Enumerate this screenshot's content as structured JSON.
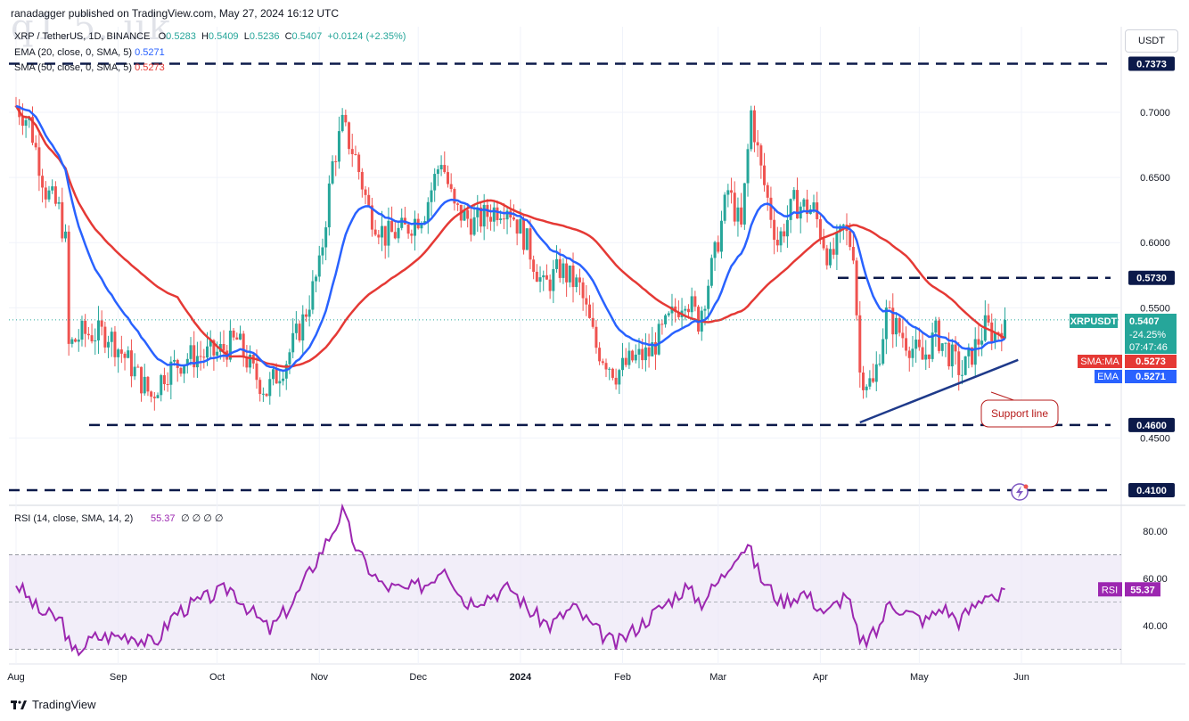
{
  "header": {
    "publisher": "ranadagger published on TradingView.com, May 27, 2024 16:12 UTC",
    "symbol": "XRP / TetherUS, 1D, BINANCE",
    "open_label": "O",
    "open": "0.5283",
    "high_label": "H",
    "high": "0.5409",
    "low_label": "L",
    "low": "0.5236",
    "close_label": "C",
    "close": "0.5407",
    "change": "+0.0124 (+2.35%)",
    "ema_label": "EMA (20, close, 0, SMA, 5)",
    "ema_value": "0.5271",
    "sma_label": "SMA (50, close, 0, SMA, 5)",
    "sma_value": "0.5273"
  },
  "watermark": "q1.5..uk",
  "currency_button": "USDT",
  "footer": {
    "brand": "TradingView"
  },
  "colors": {
    "up": "#26a69a",
    "down": "#ef5350",
    "ema": "#2962ff",
    "sma": "#e53935",
    "rsi": "#9c27b0",
    "rsi_band": "#ede7f6",
    "support": "#1e3a8a",
    "level": "#0c1a4a"
  },
  "chart_data": {
    "type": "candlestick",
    "symbol": "XRPUSDT",
    "price_axis": {
      "ylim": [
        0.405,
        0.755
      ],
      "ticks": [
        "0.7000",
        "0.6500",
        "0.6000",
        "0.5500",
        "0.4500"
      ]
    },
    "x_axis": {
      "labels": [
        "Aug",
        "Sep",
        "Oct",
        "Nov",
        "Dec",
        "2024",
        "Feb",
        "Mar",
        "Apr",
        "May",
        "Jun"
      ]
    },
    "horizontal_levels": [
      {
        "value": 0.7373,
        "label": "0.7373"
      },
      {
        "value": 0.573,
        "label": "0.5730"
      },
      {
        "value": 0.46,
        "label": "0.4600"
      },
      {
        "value": 0.41,
        "label": "0.4100"
      }
    ],
    "support_line": {
      "from": [
        "2024-04-13",
        0.462
      ],
      "to": [
        "2024-05-31",
        0.51
      ],
      "label": "Support line"
    },
    "last_price_tag": {
      "name": "XRPUSDT",
      "price": "0.5407",
      "change": "-24.25%",
      "countdown": "07:47:46"
    },
    "sma_tag": {
      "name": "SMA:MA",
      "value": "0.5273"
    },
    "ema_tag": {
      "name": "EMA",
      "value": "0.5271"
    },
    "price_path": [
      [
        "2023-08-01",
        0.705
      ],
      [
        "2023-08-05",
        0.693
      ],
      [
        "2023-08-10",
        0.64
      ],
      [
        "2023-08-14",
        0.625
      ],
      [
        "2023-08-16",
        0.6
      ],
      [
        "2023-08-17",
        0.52
      ],
      [
        "2023-08-21",
        0.53
      ],
      [
        "2023-08-29",
        0.53
      ],
      [
        "2023-09-05",
        0.505
      ],
      [
        "2023-09-11",
        0.482
      ],
      [
        "2023-09-15",
        0.5
      ],
      [
        "2023-09-22",
        0.512
      ],
      [
        "2023-10-01",
        0.515
      ],
      [
        "2023-10-07",
        0.525
      ],
      [
        "2023-10-12",
        0.5
      ],
      [
        "2023-10-16",
        0.486
      ],
      [
        "2023-10-22",
        0.51
      ],
      [
        "2023-10-27",
        0.54
      ],
      [
        "2023-11-01",
        0.58
      ],
      [
        "2023-11-05",
        0.66
      ],
      [
        "2023-11-08",
        0.69
      ],
      [
        "2023-11-12",
        0.665
      ],
      [
        "2023-11-16",
        0.625
      ],
      [
        "2023-11-21",
        0.605
      ],
      [
        "2023-11-27",
        0.61
      ],
      [
        "2023-12-03",
        0.625
      ],
      [
        "2023-12-08",
        0.665
      ],
      [
        "2023-12-12",
        0.625
      ],
      [
        "2023-12-18",
        0.615
      ],
      [
        "2023-12-24",
        0.625
      ],
      [
        "2023-12-28",
        0.63
      ],
      [
        "2024-01-03",
        0.6
      ],
      [
        "2024-01-08",
        0.565
      ],
      [
        "2024-01-13",
        0.58
      ],
      [
        "2024-01-19",
        0.565
      ],
      [
        "2024-01-24",
        0.52
      ],
      [
        "2024-01-30",
        0.5
      ],
      [
        "2024-02-04",
        0.51
      ],
      [
        "2024-02-09",
        0.515
      ],
      [
        "2024-02-14",
        0.535
      ],
      [
        "2024-02-20",
        0.56
      ],
      [
        "2024-02-24",
        0.54
      ],
      [
        "2024-02-29",
        0.59
      ],
      [
        "2024-03-04",
        0.64
      ],
      [
        "2024-03-08",
        0.61
      ],
      [
        "2024-03-11",
        0.7
      ],
      [
        "2024-03-14",
        0.655
      ],
      [
        "2024-03-19",
        0.6
      ],
      [
        "2024-03-24",
        0.63
      ],
      [
        "2024-03-30",
        0.625
      ],
      [
        "2024-04-04",
        0.585
      ],
      [
        "2024-04-08",
        0.61
      ],
      [
        "2024-04-11",
        0.595
      ],
      [
        "2024-04-13",
        0.5
      ],
      [
        "2024-04-17",
        0.49
      ],
      [
        "2024-04-21",
        0.545
      ],
      [
        "2024-04-27",
        0.525
      ],
      [
        "2024-05-02",
        0.51
      ],
      [
        "2024-05-06",
        0.53
      ],
      [
        "2024-05-10",
        0.515
      ],
      [
        "2024-05-14",
        0.5
      ],
      [
        "2024-05-18",
        0.52
      ],
      [
        "2024-05-21",
        0.535
      ],
      [
        "2024-05-24",
        0.53
      ],
      [
        "2024-05-27",
        0.5407
      ]
    ],
    "rsi": {
      "label": "RSI (14, close, SMA, 14, 2)",
      "value": "55.37",
      "flags": "∅ ∅ ∅ ∅",
      "ylim": [
        25,
        92
      ],
      "ticks": [
        "80.00",
        "60.00",
        "40.00"
      ],
      "band": [
        30,
        70
      ],
      "path": [
        [
          "2023-08-01",
          58
        ],
        [
          "2023-08-08",
          46
        ],
        [
          "2023-08-15",
          42
        ],
        [
          "2023-08-18",
          28
        ],
        [
          "2023-08-25",
          35
        ],
        [
          "2023-09-05",
          36
        ],
        [
          "2023-09-12",
          32
        ],
        [
          "2023-09-18",
          45
        ],
        [
          "2023-09-25",
          50
        ],
        [
          "2023-10-05",
          56
        ],
        [
          "2023-10-12",
          45
        ],
        [
          "2023-10-17",
          38
        ],
        [
          "2023-10-24",
          50
        ],
        [
          "2023-10-30",
          65
        ],
        [
          "2023-11-05",
          80
        ],
        [
          "2023-11-08",
          88
        ],
        [
          "2023-11-13",
          70
        ],
        [
          "2023-11-20",
          57
        ],
        [
          "2023-11-27",
          55
        ],
        [
          "2023-12-04",
          58
        ],
        [
          "2023-12-09",
          66
        ],
        [
          "2023-12-15",
          50
        ],
        [
          "2023-12-21",
          52
        ],
        [
          "2023-12-29",
          56
        ],
        [
          "2024-01-04",
          46
        ],
        [
          "2024-01-10",
          40
        ],
        [
          "2024-01-17",
          48
        ],
        [
          "2024-01-24",
          38
        ],
        [
          "2024-01-30",
          32
        ],
        [
          "2024-02-06",
          40
        ],
        [
          "2024-02-13",
          48
        ],
        [
          "2024-02-20",
          56
        ],
        [
          "2024-02-25",
          50
        ],
        [
          "2024-03-03",
          62
        ],
        [
          "2024-03-06",
          70
        ],
        [
          "2024-03-10",
          74
        ],
        [
          "2024-03-14",
          60
        ],
        [
          "2024-03-20",
          50
        ],
        [
          "2024-03-27",
          54
        ],
        [
          "2024-04-03",
          45
        ],
        [
          "2024-04-09",
          54
        ],
        [
          "2024-04-13",
          32
        ],
        [
          "2024-04-18",
          37
        ],
        [
          "2024-04-22",
          50
        ],
        [
          "2024-04-28",
          45
        ],
        [
          "2024-05-03",
          42
        ],
        [
          "2024-05-08",
          48
        ],
        [
          "2024-05-13",
          42
        ],
        [
          "2024-05-19",
          50
        ],
        [
          "2024-05-22",
          55
        ],
        [
          "2024-05-25",
          51
        ],
        [
          "2024-05-27",
          55.37
        ]
      ]
    }
  }
}
